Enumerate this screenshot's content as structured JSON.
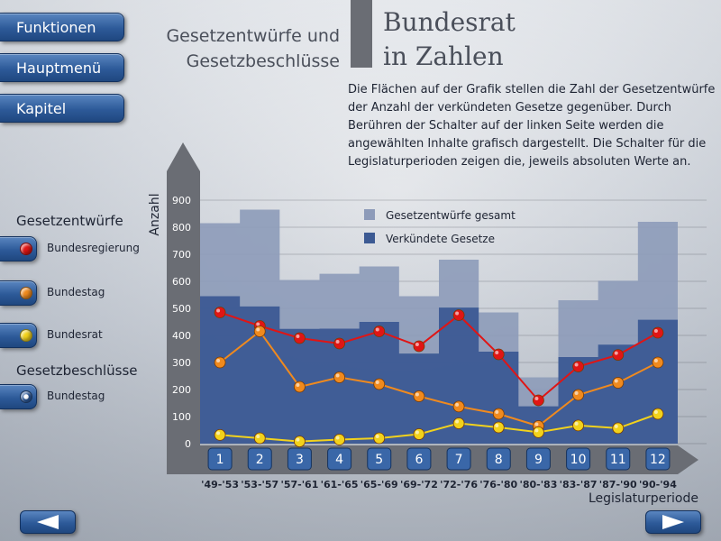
{
  "nav": {
    "funktionen": "Funktionen",
    "hauptmenu": "Hauptmenü",
    "kapitel": "Kapitel"
  },
  "legend_panel": {
    "gesetzentwuerfe_title": "Gesetzentwürfe",
    "gesetzbeschluesse_title": "Gesetzbeschlüsse",
    "items": [
      {
        "label": "Bundesregierung",
        "color": "#e01515"
      },
      {
        "label": "Bundestag",
        "color": "#f08a1e"
      },
      {
        "label": "Bundesrat",
        "color": "#f2d21c"
      },
      {
        "label": "Bundestag",
        "color": "#2e5b9c"
      }
    ]
  },
  "header": {
    "subtitle_line1": "Gesetzentwürfe und",
    "subtitle_line2": "Gesetzbeschlüsse",
    "title_line1": "Bundesrat",
    "title_line2": "in Zahlen",
    "description": "Die Flächen auf der Grafik stellen die Zahl der Gesetzentwürfe der Anzahl der verkündeten Gesetze gegenüber. Durch Berühren der Schalter auf der linken Seite werden die angewählten Inhalte grafisch dargestellt. Die Schalter für die Legislaturperioden zeigen die, jeweils absoluten Werte an."
  },
  "colors": {
    "entwuerfe_area": "#8d9bb9",
    "verkuendet_area": "#3c5a93",
    "bundesregierung": "#e01515",
    "bundestag": "#f08a1e",
    "bundesrat": "#f2d21c",
    "axis": "#6a6d74"
  },
  "nav_arrows": {
    "back": "left-arrow-icon",
    "forward": "right-arrow-icon"
  },
  "chart_data": {
    "type": "area",
    "ylabel": "Anzahl",
    "xlabel": "Legislaturperiode",
    "ylim": [
      0,
      900
    ],
    "yticks": [
      0,
      100,
      200,
      300,
      400,
      500,
      600,
      700,
      800,
      900
    ],
    "grid": true,
    "legend_position": "top-center",
    "legend": [
      "Gesetzentwürfe gesamt",
      "Verkündete Gesetze"
    ],
    "period_numbers": [
      "1",
      "2",
      "3",
      "4",
      "5",
      "6",
      "7",
      "8",
      "9",
      "10",
      "11",
      "12"
    ],
    "categories": [
      "'49-'53",
      "'53-'57",
      "'57-'61",
      "'61-'65",
      "'65-'69",
      "'69-'72",
      "'72-'76",
      "'76-'80",
      "'80-'83",
      "'83-'87",
      "'87-'90",
      "'90-'94"
    ],
    "series": [
      {
        "name": "Gesetzentwürfe gesamt",
        "kind": "area",
        "values": [
          815,
          865,
          605,
          628,
          655,
          545,
          680,
          485,
          245,
          530,
          602,
          820
        ]
      },
      {
        "name": "Verkündete Gesetze",
        "kind": "area",
        "values": [
          545,
          507,
          424,
          425,
          450,
          333,
          503,
          340,
          138,
          320,
          366,
          458
        ]
      },
      {
        "name": "Bundesregierung",
        "kind": "line",
        "values": [
          485,
          435,
          390,
          370,
          415,
          360,
          475,
          330,
          160,
          285,
          328,
          410
        ]
      },
      {
        "name": "Bundestag",
        "kind": "line",
        "values": [
          300,
          415,
          210,
          245,
          220,
          175,
          137,
          110,
          65,
          180,
          225,
          300
        ]
      },
      {
        "name": "Bundesrat",
        "kind": "line",
        "values": [
          32,
          20,
          8,
          15,
          20,
          35,
          75,
          60,
          42,
          67,
          57,
          110
        ]
      }
    ]
  }
}
